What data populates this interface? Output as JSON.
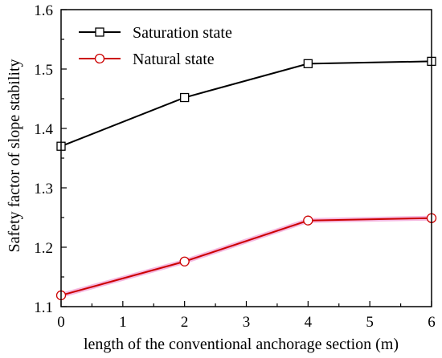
{
  "chart_data": {
    "type": "line",
    "title": "",
    "xlabel": "length of the conventional anchorage section (m)",
    "ylabel": "Safety factor of slope stability",
    "xlim": [
      0,
      6
    ],
    "ylim": [
      1.1,
      1.6
    ],
    "x_ticks": [
      "0",
      "1",
      "2",
      "3",
      "4",
      "5",
      "6"
    ],
    "y_ticks": [
      "1.1",
      "1.2",
      "1.3",
      "1.4",
      "1.5",
      "1.6"
    ],
    "grid": false,
    "legend_position": "top-left",
    "series": [
      {
        "name": "Saturation state",
        "color": "#000000",
        "marker": "square",
        "x": [
          0,
          2,
          4,
          6
        ],
        "values": [
          1.37,
          1.452,
          1.509,
          1.513
        ]
      },
      {
        "name": "Natural state",
        "color": "#cc0000",
        "marker": "circle",
        "x": [
          0,
          2,
          4,
          6
        ],
        "values": [
          1.119,
          1.176,
          1.245,
          1.249
        ]
      }
    ]
  }
}
